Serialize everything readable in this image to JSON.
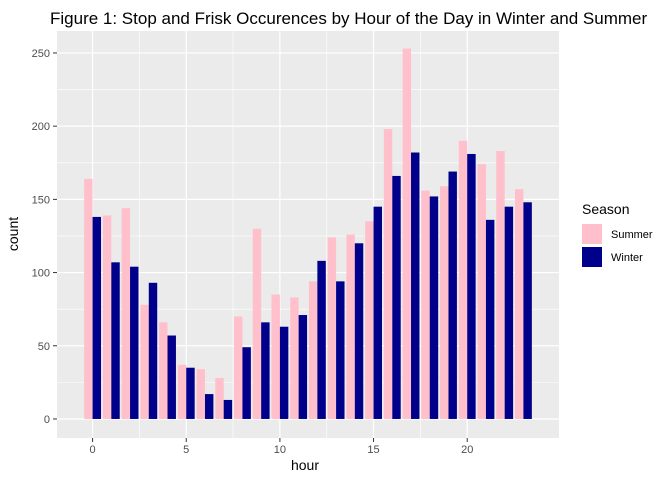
{
  "chart_data": {
    "type": "bar",
    "title": "Figure 1: Stop and Frisk Occurences by Hour of the Day in Winter and Summer",
    "xlabel": "hour",
    "ylabel": "count",
    "x": [
      0,
      1,
      2,
      3,
      4,
      5,
      6,
      7,
      8,
      9,
      10,
      11,
      12,
      13,
      14,
      15,
      16,
      17,
      18,
      19,
      20,
      21,
      22,
      23
    ],
    "xlim": [
      -1.9,
      24.9
    ],
    "ylim": [
      -13,
      265
    ],
    "xticks": [
      0,
      5,
      10,
      15,
      20
    ],
    "yticks": [
      0,
      50,
      100,
      150,
      200,
      250
    ],
    "grid": true,
    "legend": {
      "title": "Season",
      "position": "right"
    },
    "series": [
      {
        "name": "Summer",
        "color": "#ffc0cb",
        "values": [
          164,
          139,
          144,
          78,
          66,
          37,
          34,
          28,
          70,
          130,
          85,
          83,
          94,
          124,
          126,
          135,
          198,
          253,
          156,
          159,
          190,
          174,
          183,
          157
        ]
      },
      {
        "name": "Winter",
        "color": "#00008b",
        "values": [
          138,
          107,
          104,
          93,
          57,
          35,
          17,
          13,
          49,
          66,
          63,
          71,
          108,
          94,
          120,
          145,
          166,
          182,
          152,
          169,
          181,
          136,
          145,
          148
        ]
      }
    ]
  }
}
